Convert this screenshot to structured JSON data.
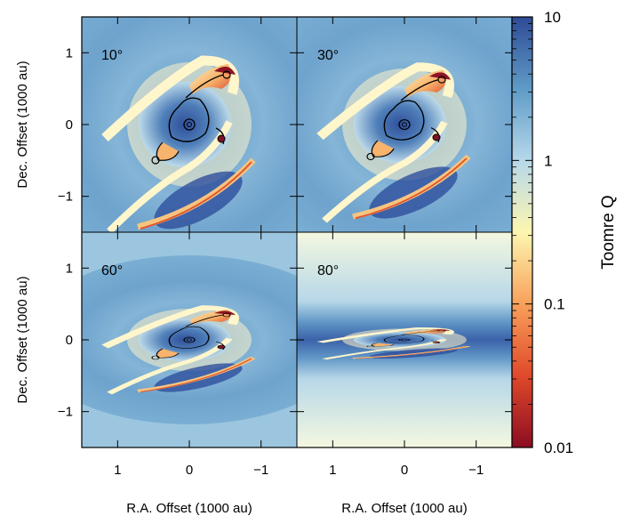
{
  "chart_data": {
    "type": "heatmap",
    "layout": "2x2 grid of panels sharing axes, with vertical colorbar on right",
    "xlabel": "R.A. Offset (1000 au)",
    "ylabel": "Dec. Offset (1000 au)",
    "xlim": [
      1.5,
      -1.5
    ],
    "ylim": [
      -1.5,
      1.5
    ],
    "xticks": [
      1,
      0,
      -1
    ],
    "xtick_labels": [
      "1",
      "0",
      "−1"
    ],
    "yticks": [
      -1,
      0,
      1
    ],
    "ytick_labels": [
      "−1",
      "0",
      "1"
    ],
    "colorbar": {
      "label": "Toomre Q",
      "scale": "log",
      "range": [
        0.01,
        10
      ],
      "ticks": [
        0.01,
        0.1,
        1,
        10
      ],
      "tick_labels": [
        "0.01",
        "0.1",
        "1",
        "10"
      ],
      "colormap": [
        "#8b0d22",
        "#e0492a",
        "#f8a05a",
        "#fdf6b0",
        "#b6d8ea",
        "#5f9bc7",
        "#2e4a96"
      ]
    },
    "panels": [
      {
        "label": "10°",
        "inclination_deg": 10,
        "background_Q": 2
      },
      {
        "label": "30°",
        "inclination_deg": 30,
        "background_Q": 2
      },
      {
        "label": "60°",
        "inclination_deg": 60,
        "background_Q": 2
      },
      {
        "label": "80°",
        "inclination_deg": 80,
        "background_Q": 0.5
      }
    ]
  }
}
